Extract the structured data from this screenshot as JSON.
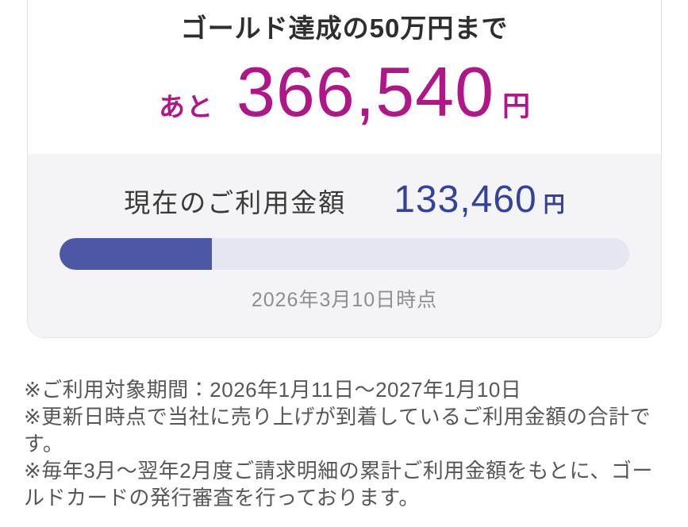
{
  "card": {
    "title": "ゴールド達成の50万円まで",
    "remaining": {
      "prefix": "あと",
      "amount": "366,540",
      "unit": "円"
    },
    "current": {
      "label": "現在のご利用金額",
      "amount": "133,460",
      "unit": "円"
    },
    "progress": {
      "percent": 26.7,
      "fill_style": "width:26.7%"
    },
    "as_of": "2026年3月10日時点"
  },
  "footnotes": [
    "※ご利用対象期間：2026年1月11日〜2027年1月10日",
    "※更新日時点で当社に売り上げが到着しているご利用金額の合計です。",
    "※毎年3月〜翌年2月度ご請求明細の累計ご利用金額をもとに、ゴールドカードの発行審査を行っております。"
  ],
  "colors": {
    "accent_magenta": "#b01687",
    "accent_blue": "#33439b",
    "progress_fill": "#4c57a5",
    "progress_track": "#e5e6f1",
    "section_bg": "#f4f4f6"
  }
}
